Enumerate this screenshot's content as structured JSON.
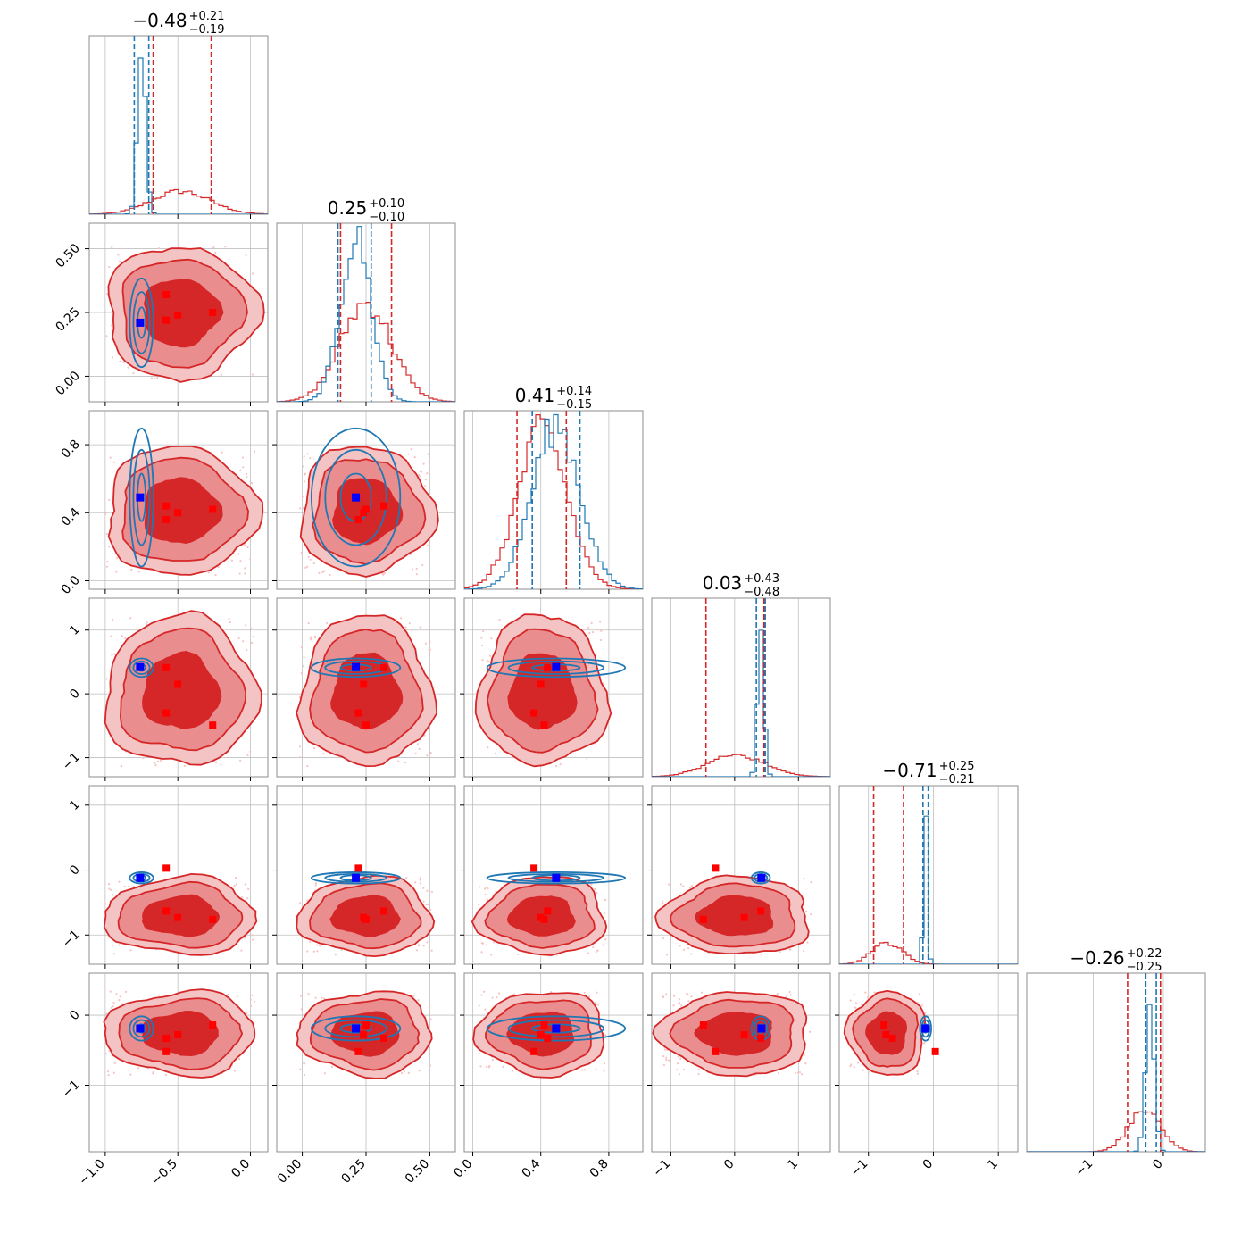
{
  "colors": {
    "red": "#d62728",
    "red_light": "#f4c4c4",
    "red_mid": "#ea8d8e",
    "blue": "#1f77b4",
    "marker_red": "#ff0000",
    "marker_blue": "#0000ff"
  },
  "chart_data": {
    "type": "corner",
    "n_params": 6,
    "grid": true,
    "series": [
      {
        "color": "red",
        "style": "filled-contours"
      },
      {
        "color": "blue",
        "style": "line-contours"
      }
    ],
    "titles": [
      {
        "value": "−0.48",
        "plus": "+0.21",
        "minus": "−0.19"
      },
      {
        "value": "0.25",
        "plus": "+0.10",
        "minus": "−0.10"
      },
      {
        "value": "0.41",
        "plus": "+0.14",
        "minus": "−0.15"
      },
      {
        "value": "0.03",
        "plus": "+0.43",
        "minus": "−0.48"
      },
      {
        "value": "−0.71",
        "plus": "+0.25",
        "minus": "−0.21"
      },
      {
        "value": "−0.26",
        "plus": "+0.22",
        "minus": "−0.25"
      }
    ],
    "params": [
      {
        "range": [
          -1.11,
          0.12
        ],
        "ticks": [
          -1.0,
          -0.5,
          0.0
        ],
        "tick_labels": [
          "−1.0",
          "−0.5",
          "0.0"
        ]
      },
      {
        "range": [
          -0.1,
          0.6
        ],
        "ticks": [
          0.0,
          0.25,
          0.5
        ],
        "tick_labels": [
          "0.00",
          "0.25",
          "0.50"
        ]
      },
      {
        "range": [
          -0.05,
          1.0
        ],
        "ticks": [
          0.0,
          0.4,
          0.8
        ],
        "tick_labels": [
          "0.0",
          "0.4",
          "0.8"
        ]
      },
      {
        "range": [
          -1.3,
          1.5
        ],
        "ticks": [
          -1,
          0,
          1
        ],
        "tick_labels": [
          "−1",
          "0",
          "1"
        ]
      },
      {
        "range": [
          -1.45,
          1.3
        ],
        "ticks": [
          -1,
          0,
          1
        ],
        "tick_labels": [
          "−1",
          "0",
          "1"
        ]
      },
      {
        "range": [
          -1.95,
          0.6
        ],
        "ticks": [
          -1,
          0
        ],
        "tick_labels": [
          "−1",
          "0"
        ]
      }
    ],
    "red": {
      "mean": [
        -0.48,
        0.25,
        0.41,
        0.03,
        -0.71,
        -0.26
      ],
      "std": [
        0.2,
        0.1,
        0.145,
        0.45,
        0.23,
        0.23
      ],
      "quantiles": [
        [
          -0.67,
          -0.27
        ],
        [
          0.15,
          0.35
        ],
        [
          0.26,
          0.55
        ],
        [
          -0.45,
          0.46
        ],
        [
          -0.92,
          -0.46
        ],
        [
          -0.51,
          -0.04
        ]
      ],
      "markers": [
        [
          -0.58,
          0.32,
          0.44,
          0.41,
          -0.63,
          -0.33
        ],
        [
          -0.58,
          0.22,
          0.36,
          -0.3,
          0.03,
          -0.52
        ],
        [
          -0.5,
          0.24,
          0.4,
          0.15,
          -0.73,
          -0.28
        ],
        [
          -0.26,
          0.25,
          0.42,
          -0.49,
          -0.76,
          -0.14
        ]
      ]
    },
    "blue": {
      "mean": [
        -0.75,
        0.21,
        0.49,
        0.41,
        -0.12,
        -0.19
      ],
      "std": [
        0.028,
        0.06,
        0.14,
        0.05,
        0.03,
        0.06
      ],
      "quantiles": [
        [
          -0.8,
          -0.7
        ],
        [
          0.14,
          0.27
        ],
        [
          0.35,
          0.63
        ],
        [
          0.34,
          0.48
        ],
        [
          -0.16,
          -0.08
        ],
        [
          -0.25,
          -0.1
        ]
      ],
      "truth": [
        -0.76,
        0.21,
        0.49,
        0.42,
        -0.12,
        -0.19
      ]
    }
  }
}
